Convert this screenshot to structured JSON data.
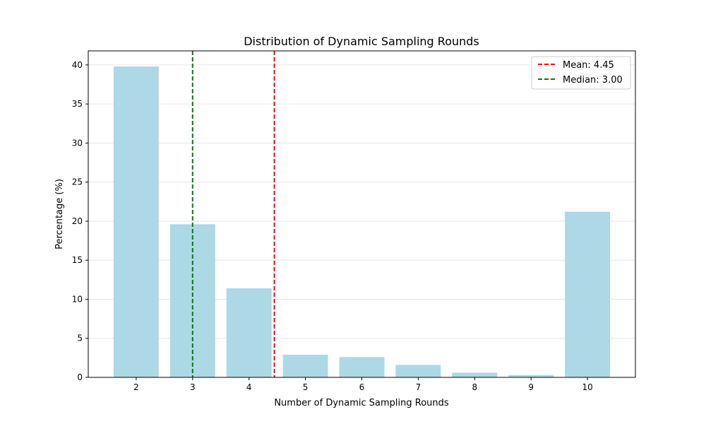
{
  "chart_data": {
    "type": "bar",
    "title": "Distribution of Dynamic Sampling Rounds",
    "xlabel": "Number of Dynamic Sampling Rounds",
    "ylabel": "Percentage (%)",
    "categories": [
      2,
      3,
      4,
      5,
      6,
      7,
      8,
      9,
      10
    ],
    "values": [
      39.8,
      19.6,
      11.4,
      2.9,
      2.6,
      1.6,
      0.6,
      0.3,
      21.2
    ],
    "xlim": [
      1.15,
      10.85
    ],
    "ylim": [
      0,
      41.8
    ],
    "yticks": [
      0,
      5,
      10,
      15,
      20,
      25,
      30,
      35,
      40
    ],
    "grid": {
      "y": true,
      "x": false
    },
    "legend_position": "top-right",
    "bar_color": "#add8e6",
    "reference_lines": [
      {
        "label": "Mean: 4.45",
        "x": 4.45,
        "color": "#ff0000",
        "style": "dashed"
      },
      {
        "label": "Median: 3.00",
        "x": 3.0,
        "color": "#008000",
        "style": "dashed"
      }
    ]
  }
}
